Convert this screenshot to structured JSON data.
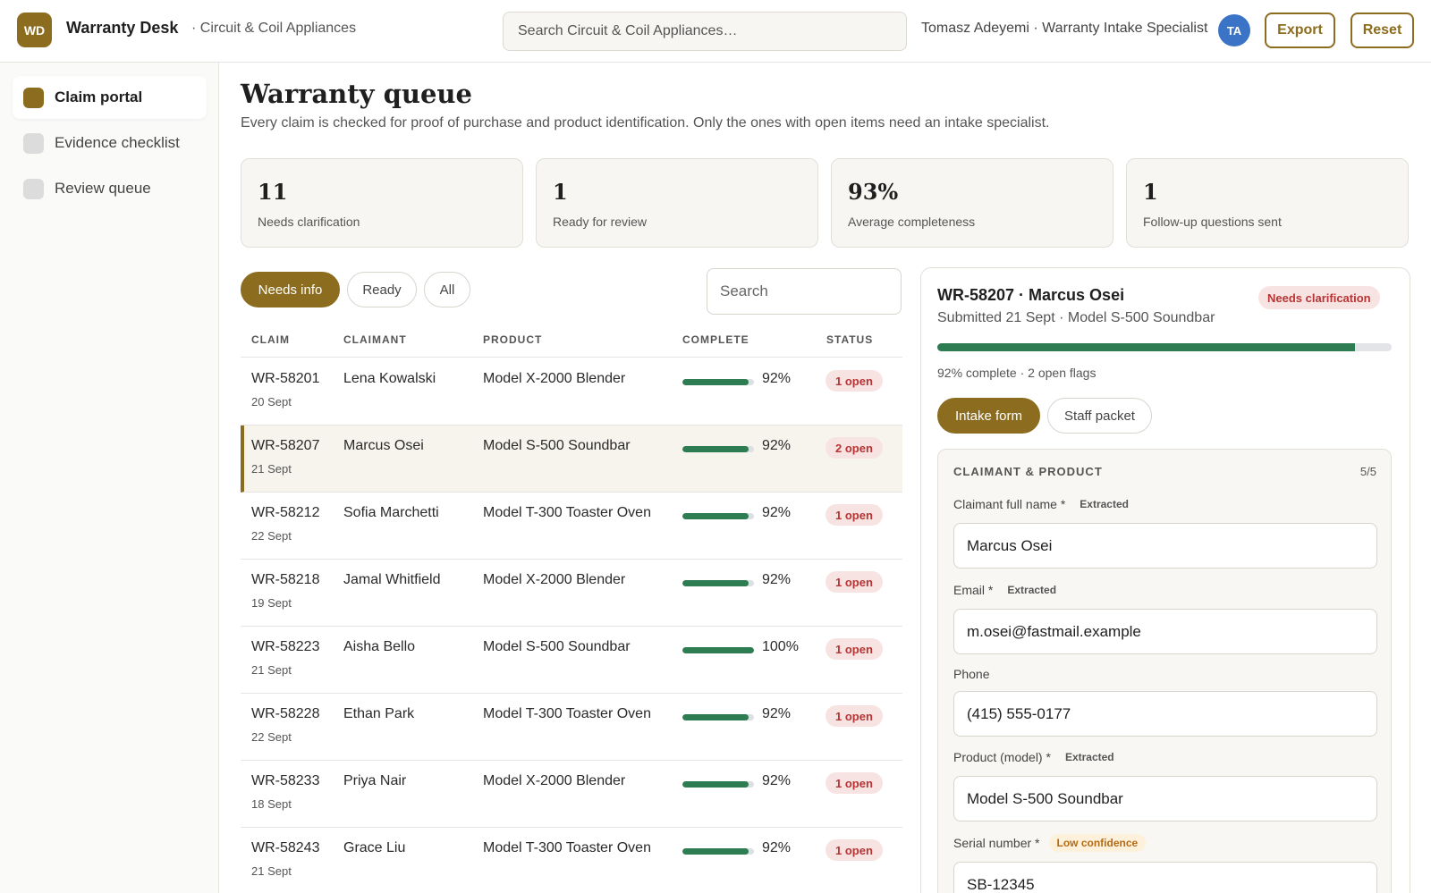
{
  "app": {
    "logo": "WD",
    "name": "Warranty Desk",
    "company": "· Circuit & Coil Appliances"
  },
  "header": {
    "search_placeholder": "Search Circuit & Coil Appliances…",
    "user": "Tomasz Adeyemi · Warranty Intake Specialist",
    "avatar": "TA",
    "export_label": "Export",
    "reset_label": "Reset"
  },
  "sidebar": {
    "items": [
      {
        "label": "Claim portal",
        "active": true
      },
      {
        "label": "Evidence checklist"
      },
      {
        "label": "Review queue"
      }
    ]
  },
  "page": {
    "title": "Warranty queue",
    "subtitle": "Every claim is checked for proof of purchase and product identification. Only the ones with open items need an intake specialist."
  },
  "stats": [
    {
      "value": "11",
      "label": "Needs clarification"
    },
    {
      "value": "1",
      "label": "Ready for review"
    },
    {
      "value": "93%",
      "label": "Average completeness"
    },
    {
      "value": "1",
      "label": "Follow-up questions sent"
    }
  ],
  "filters": {
    "tabs": [
      "Needs info",
      "Ready",
      "All"
    ],
    "active": "Needs info",
    "search_placeholder": "Search"
  },
  "table": {
    "columns": [
      "CLAIM",
      "CLAIMANT",
      "PRODUCT",
      "COMPLETE",
      "STATUS"
    ],
    "rows": [
      {
        "id": "WR-58201",
        "date": "20 Sept",
        "claimant": "Lena Kowalski",
        "product": "Model X-2000 Blender",
        "complete": 92,
        "complete_label": "92%",
        "status": "1 open"
      },
      {
        "id": "WR-58207",
        "date": "21 Sept",
        "claimant": "Marcus Osei",
        "product": "Model S-500 Soundbar",
        "complete": 92,
        "complete_label": "92%",
        "status": "2 open",
        "selected": true
      },
      {
        "id": "WR-58212",
        "date": "22 Sept",
        "claimant": "Sofia Marchetti",
        "product": "Model T-300 Toaster Oven",
        "complete": 92,
        "complete_label": "92%",
        "status": "1 open"
      },
      {
        "id": "WR-58218",
        "date": "19 Sept",
        "claimant": "Jamal Whitfield",
        "product": "Model X-2000 Blender",
        "complete": 92,
        "complete_label": "92%",
        "status": "1 open"
      },
      {
        "id": "WR-58223",
        "date": "21 Sept",
        "claimant": "Aisha Bello",
        "product": "Model S-500 Soundbar",
        "complete": 100,
        "complete_label": "100%",
        "status": "1 open"
      },
      {
        "id": "WR-58228",
        "date": "22 Sept",
        "claimant": "Ethan Park",
        "product": "Model T-300 Toaster Oven",
        "complete": 92,
        "complete_label": "92%",
        "status": "1 open"
      },
      {
        "id": "WR-58233",
        "date": "18 Sept",
        "claimant": "Priya Nair",
        "product": "Model X-2000 Blender",
        "complete": 92,
        "complete_label": "92%",
        "status": "1 open"
      },
      {
        "id": "WR-58243",
        "date": "21 Sept",
        "claimant": "Grace Liu",
        "product": "Model T-300 Toaster Oven",
        "complete": 92,
        "complete_label": "92%",
        "status": "1 open"
      }
    ]
  },
  "detail": {
    "title": "WR-58207 · Marcus Osei",
    "status": "Needs clarification",
    "subtitle": "Submitted 21 Sept · Model S-500 Soundbar",
    "progress": 92,
    "progress_text": "92% complete · 2 open flags",
    "tabs": [
      "Intake form",
      "Staff packet"
    ],
    "section": {
      "title": "CLAIMANT & PRODUCT",
      "count": "5/5",
      "fields": [
        {
          "label": "Claimant full name *",
          "tag": "Extracted",
          "value": "Marcus Osei"
        },
        {
          "label": "Email *",
          "tag": "Extracted",
          "value": "m.osei@fastmail.example"
        },
        {
          "label": "Phone",
          "tag": "",
          "value": "(415) 555-0177"
        },
        {
          "label": "Product (model) *",
          "tag": "Extracted",
          "value": "Model S-500 Soundbar"
        },
        {
          "label": "Serial number *",
          "tag": "Low confidence",
          "value": "SB-12345"
        }
      ]
    }
  },
  "colors": {
    "accent": "#8c6c1f",
    "progress": "#2e7d52",
    "danger": "#b53434",
    "warning": "#b66a14",
    "avatar": "#3b73c7"
  }
}
